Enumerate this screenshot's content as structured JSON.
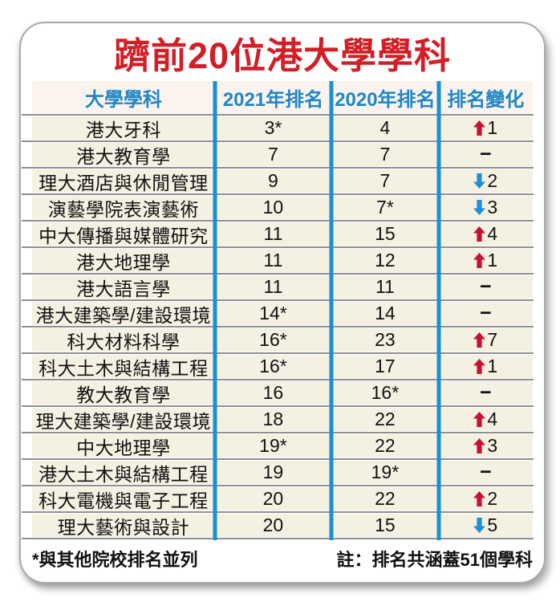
{
  "chart_data": {
    "type": "table",
    "title": "躋前20位港大學學科",
    "columns": [
      "大學學科",
      "2021年排名",
      "2020年排名",
      "排名變化"
    ],
    "rows": [
      {
        "subject": "港大牙科",
        "rank_2021": "3*",
        "rank_2020": "4",
        "change_dir": "up",
        "change_value": 1
      },
      {
        "subject": "港大教育學",
        "rank_2021": "7",
        "rank_2020": "7",
        "change_dir": "none",
        "change_value": null
      },
      {
        "subject": "理大酒店與休閒管理",
        "rank_2021": "9",
        "rank_2020": "7",
        "change_dir": "down",
        "change_value": 2
      },
      {
        "subject": "演藝學院表演藝術",
        "rank_2021": "10",
        "rank_2020": "7*",
        "change_dir": "down",
        "change_value": 3
      },
      {
        "subject": "中大傳播與媒體研究",
        "rank_2021": "11",
        "rank_2020": "15",
        "change_dir": "up",
        "change_value": 4
      },
      {
        "subject": "港大地理學",
        "rank_2021": "11",
        "rank_2020": "12",
        "change_dir": "up",
        "change_value": 1
      },
      {
        "subject": "港大語言學",
        "rank_2021": "11",
        "rank_2020": "11",
        "change_dir": "none",
        "change_value": null
      },
      {
        "subject": "港大建築學/建設環境",
        "rank_2021": "14*",
        "rank_2020": "14",
        "change_dir": "none",
        "change_value": null
      },
      {
        "subject": "科大材料科學",
        "rank_2021": "16*",
        "rank_2020": "23",
        "change_dir": "up",
        "change_value": 7
      },
      {
        "subject": "科大土木與結構工程",
        "rank_2021": "16*",
        "rank_2020": "17",
        "change_dir": "up",
        "change_value": 1
      },
      {
        "subject": "教大教育學",
        "rank_2021": "16",
        "rank_2020": "16*",
        "change_dir": "none",
        "change_value": null
      },
      {
        "subject": "理大建築學/建設環境",
        "rank_2021": "18",
        "rank_2020": "22",
        "change_dir": "up",
        "change_value": 4
      },
      {
        "subject": "中大地理學",
        "rank_2021": "19*",
        "rank_2020": "22",
        "change_dir": "up",
        "change_value": 3
      },
      {
        "subject": "港大土木與結構工程",
        "rank_2021": "19",
        "rank_2020": "19*",
        "change_dir": "none",
        "change_value": null
      },
      {
        "subject": "科大電機與電子工程",
        "rank_2021": "20",
        "rank_2020": "22",
        "change_dir": "up",
        "change_value": 2
      },
      {
        "subject": "理大藝術與設計",
        "rank_2021": "20",
        "rank_2020": "15",
        "change_dir": "down",
        "change_value": 5
      }
    ],
    "no_change_symbol": "−",
    "notes": [
      "*與其他院校排名並列",
      "註：排名共涵蓋51個學科"
    ]
  },
  "colors": {
    "title_red": "#d21f27",
    "header_blue": "#1f87c5",
    "divider_blue": "#1a8fd1",
    "up_red": "#c51230",
    "down_blue": "#1f8fd8",
    "row_cream": "#f4f0e2",
    "header_bg": "#fcf3ef",
    "separator_gray": "#8f8f8f"
  }
}
